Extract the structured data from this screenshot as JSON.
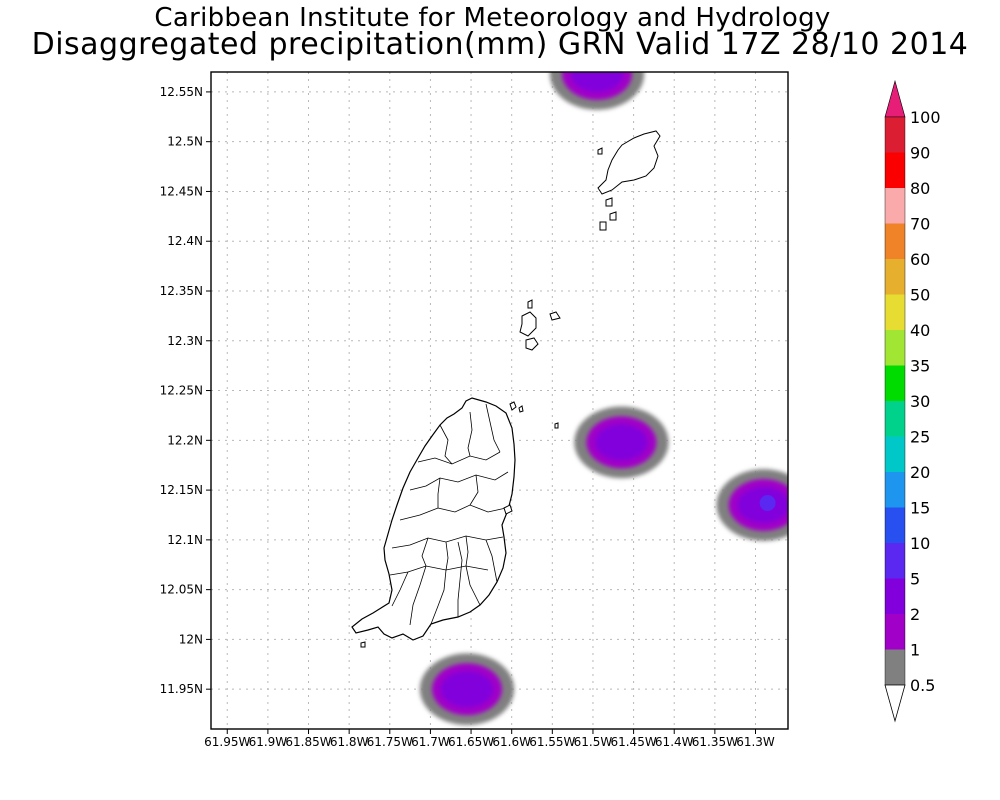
{
  "title": "Caribbean Institute for Meteorology and Hydrology",
  "subtitle": "Disaggregated precipitation(mm) GRN Valid 17Z 28/10 2014",
  "map": {
    "lon_range": [
      -61.97,
      -61.26
    ],
    "lat_range": [
      11.91,
      12.57
    ],
    "x_ticks": [
      "61.95W",
      "61.9W",
      "61.85W",
      "61.8W",
      "61.75W",
      "61.7W",
      "61.65W",
      "61.6W",
      "61.55W",
      "61.5W",
      "61.45W",
      "61.4W",
      "61.35W",
      "61.3W"
    ],
    "x_tick_values": [
      -61.95,
      -61.9,
      -61.85,
      -61.8,
      -61.75,
      -61.7,
      -61.65,
      -61.6,
      -61.55,
      -61.5,
      -61.45,
      -61.4,
      -61.35,
      -61.3
    ],
    "y_ticks": [
      "11.95N",
      "12N",
      "12.05N",
      "12.1N",
      "12.15N",
      "12.2N",
      "12.25N",
      "12.3N",
      "12.35N",
      "12.4N",
      "12.45N",
      "12.5N",
      "12.55N"
    ],
    "y_tick_values": [
      11.95,
      12.0,
      12.05,
      12.1,
      12.15,
      12.2,
      12.25,
      12.3,
      12.35,
      12.4,
      12.45,
      12.5,
      12.55
    ],
    "grid": true,
    "precip_cells": [
      {
        "lon": -61.655,
        "lat": 11.95,
        "max_mm": 2
      },
      {
        "lon": -61.465,
        "lat": 12.198,
        "max_mm": 2
      },
      {
        "lon": -61.29,
        "lat": 12.135,
        "max_mm": 5
      },
      {
        "lon": -61.495,
        "lat": 12.568,
        "max_mm": 2
      }
    ]
  },
  "colorbar": {
    "labels": [
      "0.5",
      "1",
      "2",
      "5",
      "10",
      "15",
      "20",
      "25",
      "30",
      "35",
      "40",
      "50",
      "60",
      "70",
      "80",
      "90",
      "100"
    ],
    "colors": [
      "#808080",
      "#a000c8",
      "#8200dc",
      "#5a28f0",
      "#2850f0",
      "#1e96f0",
      "#00c8c8",
      "#00d28c",
      "#00dc00",
      "#a0e632",
      "#e6dc32",
      "#e6af2d",
      "#f08228",
      "#faaaaa",
      "#fa0000",
      "#dc1e32",
      "#e61e78"
    ],
    "over_color": "#e61e78",
    "under_color": "#ffffff"
  }
}
